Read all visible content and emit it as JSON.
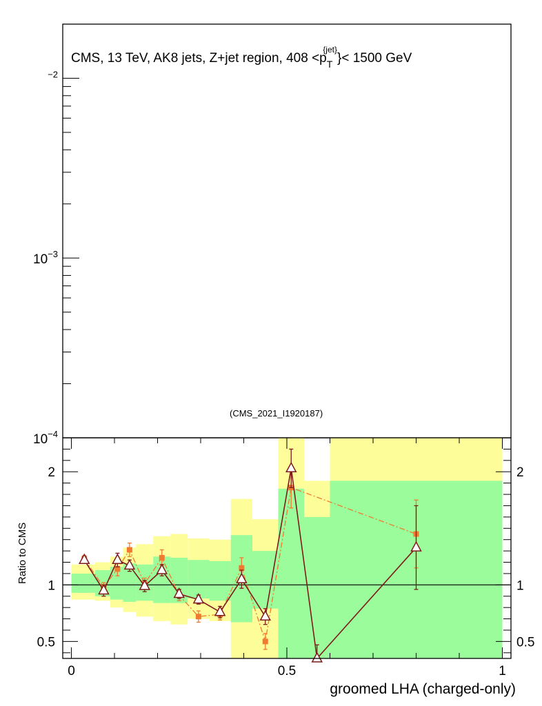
{
  "chart_data": [
    {
      "type": "line",
      "panel": "main",
      "title_parts": {
        "prefix": "CMS, 13 TeV, AK8 jets, Z+jet region, 408 <p",
        "subscript": "T",
        "superscript": "{jet}",
        "suffix": "}< 1500 GeV"
      },
      "annotation": "(CMS_2021_I1920187)",
      "yscale": "log",
      "ylim": [
        0.0001,
        0.02
      ],
      "ytick_labels": [
        {
          "value": 0.01,
          "base": "",
          "exponent": "−2"
        },
        {
          "value": 0.001,
          "base": "10",
          "exponent": "−3"
        },
        {
          "value": 0.0001,
          "base": "10",
          "exponent": "−4"
        }
      ],
      "series": []
    },
    {
      "type": "line",
      "panel": "ratio",
      "xlabel": "groomed LHA (charged-only)",
      "ylabel": "Ratio to CMS",
      "xlim": [
        -0.02,
        1.02
      ],
      "ylim": [
        0.35,
        2.3
      ],
      "xticks": [
        {
          "value": 0,
          "label": "0"
        },
        {
          "value": 0.5,
          "label": "0.5"
        },
        {
          "value": 1,
          "label": "1"
        }
      ],
      "yticks": [
        {
          "value": 0.5,
          "label": "0.5"
        },
        {
          "value": 1,
          "label": "1"
        },
        {
          "value": 2,
          "label": "2"
        }
      ],
      "reference_line": 1,
      "bands": [
        {
          "x0": 0.0,
          "x1": 0.055,
          "inner": [
            0.93,
            1.1
          ],
          "outer": [
            0.87,
            1.18
          ]
        },
        {
          "x0": 0.055,
          "x1": 0.09,
          "inner": [
            0.9,
            1.13
          ],
          "outer": [
            0.86,
            1.2
          ]
        },
        {
          "x0": 0.09,
          "x1": 0.12,
          "inner": [
            0.87,
            1.16
          ],
          "outer": [
            0.8,
            1.25
          ]
        },
        {
          "x0": 0.12,
          "x1": 0.15,
          "inner": [
            0.85,
            1.19
          ],
          "outer": [
            0.76,
            1.33
          ]
        },
        {
          "x0": 0.15,
          "x1": 0.19,
          "inner": [
            0.86,
            1.18
          ],
          "outer": [
            0.72,
            1.36
          ]
        },
        {
          "x0": 0.19,
          "x1": 0.23,
          "inner": [
            0.84,
            1.25
          ],
          "outer": [
            0.68,
            1.43
          ]
        },
        {
          "x0": 0.23,
          "x1": 0.27,
          "inner": [
            0.84,
            1.24
          ],
          "outer": [
            0.65,
            1.45
          ]
        },
        {
          "x0": 0.27,
          "x1": 0.32,
          "inner": [
            0.88,
            1.22
          ],
          "outer": [
            0.7,
            1.41
          ]
        },
        {
          "x0": 0.32,
          "x1": 0.37,
          "inner": [
            0.86,
            1.21
          ],
          "outer": [
            0.68,
            1.4
          ]
        },
        {
          "x0": 0.37,
          "x1": 0.42,
          "inner": [
            0.67,
            1.44
          ],
          "outer": [
            0.35,
            1.76
          ]
        },
        {
          "x0": 0.42,
          "x1": 0.48,
          "inner": [
            0.79,
            1.3
          ],
          "outer": [
            0.35,
            1.58
          ]
        },
        {
          "x0": 0.48,
          "x1": 0.54,
          "inner": [
            0.35,
            1.85
          ],
          "outer": [
            0.35,
            2.3
          ]
        },
        {
          "x0": 0.54,
          "x1": 0.6,
          "inner": [
            0.35,
            1.6
          ],
          "outer": [
            0.35,
            1.92
          ]
        },
        {
          "x0": 0.6,
          "x1": 1.0,
          "inner": [
            0.35,
            1.92
          ],
          "outer": [
            0.35,
            2.3
          ]
        }
      ],
      "series": [
        {
          "style": "solid-triangle",
          "color": "#7f1a1a",
          "x": [
            0.03,
            0.075,
            0.107,
            0.135,
            0.17,
            0.21,
            0.25,
            0.295,
            0.345,
            0.395,
            0.45,
            0.51,
            0.57,
            0.8
          ],
          "y": [
            1.22,
            0.95,
            1.22,
            1.17,
            0.99,
            1.13,
            0.92,
            0.87,
            0.76,
            1.05,
            0.72,
            2.03,
            0.35,
            1.33
          ],
          "err": [
            0.03,
            0.05,
            0.06,
            0.05,
            0.05,
            0.05,
            0.04,
            0.04,
            0.05,
            0.08,
            0.07,
            0.17,
            0.12,
            0.37
          ]
        },
        {
          "style": "dashdot-square",
          "color": "#f07a30",
          "x": [
            0.03,
            0.075,
            0.107,
            0.135,
            0.17,
            0.21,
            0.25,
            0.295,
            0.345,
            0.395,
            0.45,
            0.51,
            0.8
          ],
          "y": [
            1.23,
            0.98,
            1.14,
            1.31,
            1.01,
            1.24,
            0.91,
            0.72,
            0.74,
            1.15,
            0.5,
            1.86,
            1.45
          ],
          "err": [
            0.03,
            0.04,
            0.06,
            0.06,
            0.05,
            0.07,
            0.05,
            0.05,
            0.05,
            0.09,
            0.07,
            0.18,
            0.3
          ]
        }
      ]
    }
  ],
  "colors": {
    "inner_band": "#9afc9a",
    "outer_band": "#fdfd9a",
    "series_solid": "#7f1a1a",
    "series_dashdot": "#f07a30"
  }
}
